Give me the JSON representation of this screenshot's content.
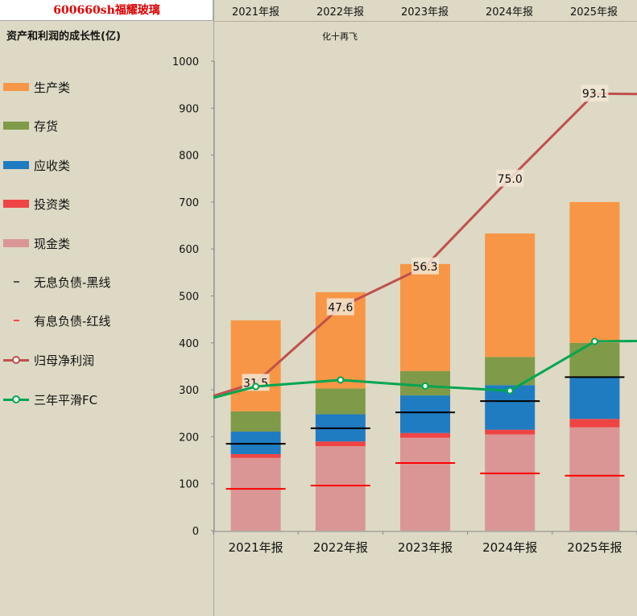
{
  "header": {
    "stock": "600660sh福耀玻璃",
    "years": [
      "2021年报",
      "2022年报",
      "2023年报",
      "2024年报",
      "2025年报"
    ]
  },
  "panel": {
    "title": "资产和利润的成长性(亿)",
    "subtitle": "化十再飞"
  },
  "legend": [
    {
      "label": "生产类",
      "kind": "box",
      "color": "#f79646"
    },
    {
      "label": "存货",
      "kind": "box",
      "color": "#7f9a48"
    },
    {
      "label": "应收类",
      "kind": "box",
      "color": "#1f7cc1"
    },
    {
      "label": "投资类",
      "kind": "box",
      "color": "#ef4444"
    },
    {
      "label": "现金类",
      "kind": "box",
      "color": "#d99694"
    },
    {
      "label": "无息负债-黑线",
      "kind": "short",
      "color": "#555555"
    },
    {
      "label": "有息负债-红线",
      "kind": "short",
      "color": "#ff4444"
    },
    {
      "label": "归母净利润",
      "kind": "line",
      "color": "#c0504d"
    },
    {
      "label": "三年平滑FC",
      "kind": "line",
      "color": "#00a651"
    }
  ],
  "chart_data": {
    "type": "bar",
    "stacked": true,
    "categories": [
      "2021年报",
      "2022年报",
      "2023年报",
      "2024年报",
      "2025年报"
    ],
    "ylim": [
      0,
      1000
    ],
    "yticks": [
      0,
      100,
      200,
      300,
      400,
      500,
      600,
      700,
      800,
      900,
      1000
    ],
    "series": [
      {
        "name": "现金类",
        "color": "#d99694",
        "values": [
          155,
          180,
          198,
          205,
          220
        ]
      },
      {
        "name": "投资类",
        "color": "#ef4444",
        "values": [
          8,
          10,
          10,
          10,
          18
        ]
      },
      {
        "name": "应收类",
        "color": "#1f7cc1",
        "values": [
          48,
          58,
          80,
          95,
          90
        ]
      },
      {
        "name": "存货",
        "color": "#7f9a48",
        "values": [
          43,
          55,
          52,
          60,
          72
        ]
      },
      {
        "name": "生产类",
        "color": "#f79646",
        "values": [
          194,
          205,
          228,
          263,
          300
        ]
      }
    ],
    "markers": [
      {
        "name": "无息负债-黑线",
        "color": "#000000",
        "values": [
          185,
          218,
          252,
          276,
          327
        ]
      },
      {
        "name": "有息负债-红线",
        "color": "#ff0000",
        "values": [
          89,
          96,
          144,
          122,
          117
        ]
      }
    ],
    "lines": [
      {
        "name": "归母净利润",
        "color": "#c0504d",
        "values": [
          31.5,
          47.6,
          56.3,
          75.0,
          93.1
        ],
        "labels": [
          "31.5",
          "47.6",
          "56.3",
          "75.0",
          "93.1"
        ],
        "scale": 10,
        "start": 287,
        "end": 930
      },
      {
        "name": "三年平滑FC",
        "color": "#00a651",
        "values": [
          307,
          321,
          308,
          298,
          403
        ],
        "start": 283,
        "end": 404
      }
    ]
  }
}
